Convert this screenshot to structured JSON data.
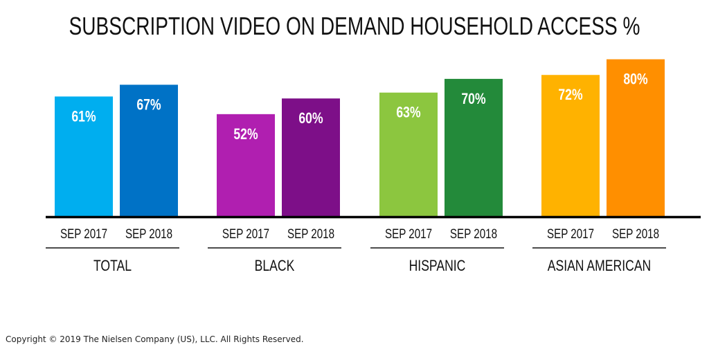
{
  "chart_data": {
    "type": "bar",
    "title": "SUBSCRIPTION VIDEO ON DEMAND HOUSEHOLD ACCESS %",
    "groups": [
      "TOTAL",
      "BLACK",
      "HISPANIC",
      "ASIAN AMERICAN"
    ],
    "categories": [
      "SEP 2017",
      "SEP 2018"
    ],
    "values": [
      [
        61,
        67
      ],
      [
        52,
        60
      ],
      [
        63,
        70
      ],
      [
        72,
        80
      ]
    ],
    "data_labels": [
      [
        "61%",
        "67%"
      ],
      [
        "52%",
        "60%"
      ],
      [
        "63%",
        "70%"
      ],
      [
        "72%",
        "80%"
      ]
    ],
    "colors": [
      [
        "#00aeef",
        "#0072c6"
      ],
      [
        "#b01fb0",
        "#7d0f88"
      ],
      [
        "#8cc63f",
        "#238a3a"
      ],
      [
        "#ffb200",
        "#ff8f00"
      ]
    ],
    "ylim": [
      0,
      100
    ],
    "grid": false,
    "legend": "none"
  },
  "footer": {
    "copyright": "Copyright © 2019 The Nielsen Company (US), LLC. All Rights Reserved."
  }
}
